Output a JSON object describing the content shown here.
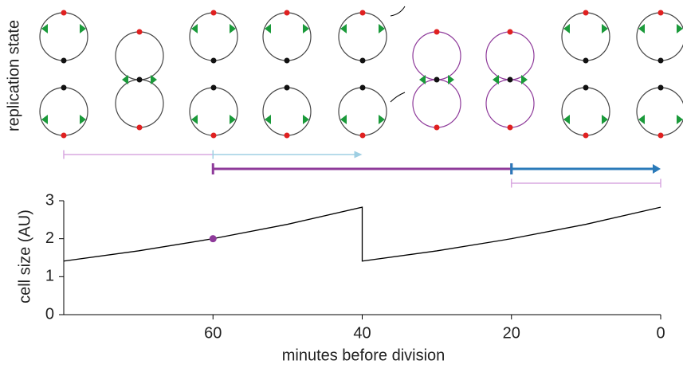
{
  "chart_data": {
    "type": "line",
    "panel_label": "replication state",
    "ylabel": "cell size (AU)",
    "xlabel": "minutes before division",
    "x": [
      80,
      70,
      60,
      50,
      40,
      40,
      30,
      20,
      10,
      0
    ],
    "values": [
      1.41,
      1.68,
      2.0,
      2.38,
      2.83,
      1.41,
      1.68,
      2.0,
      2.38,
      2.83
    ],
    "color": "#000000",
    "highlight_point": {
      "x": 60,
      "y": 2.0,
      "color": "#8e3a9a"
    },
    "intervals": [
      {
        "start": 80,
        "end": 60,
        "color": "#d9a9e0",
        "width": 1.5,
        "arrow": false
      },
      {
        "start": 60,
        "end": 40,
        "color": "#9fcfe3",
        "width": 1.5,
        "arrow": true
      },
      {
        "start": 60,
        "end": 20,
        "color": "#8e3a9a",
        "width": 3,
        "arrow": false
      },
      {
        "start": 20,
        "end": 0,
        "color": "#2a7ab9",
        "width": 3,
        "arrow": true
      },
      {
        "start": 20,
        "end": 0,
        "color": "#d9a9e0",
        "width": 1.5,
        "arrow": false
      }
    ],
    "xlim": [
      80,
      0
    ],
    "xticks": [
      60,
      40,
      20,
      0
    ],
    "ylim": [
      0,
      3
    ],
    "yticks": [
      0,
      1,
      2,
      3
    ]
  }
}
